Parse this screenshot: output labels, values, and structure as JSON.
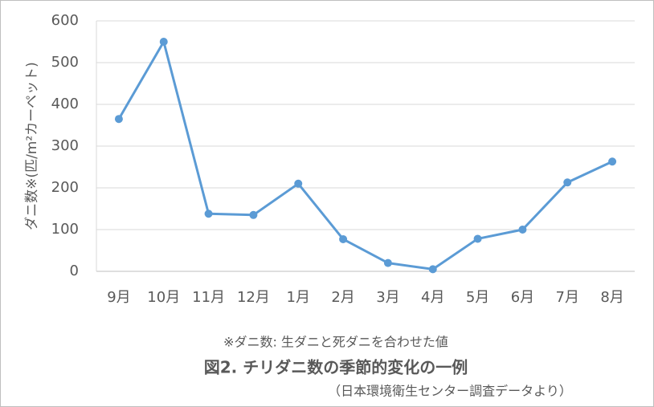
{
  "chart_data": {
    "type": "line",
    "y_label": "ダニ数※(匹/m²カーペット)",
    "footnote": "※ダニ数: 生ダニと死ダニを合わせた値",
    "title": "図2. チリダニ数の季節的変化の一例",
    "source": "（日本環境衛生センター調査データより）",
    "categories": [
      "9月",
      "10月",
      "11月",
      "12月",
      "1月",
      "2月",
      "3月",
      "4月",
      "5月",
      "6月",
      "7月",
      "8月"
    ],
    "values": [
      365,
      550,
      138,
      135,
      210,
      77,
      20,
      5,
      78,
      100,
      213,
      263
    ],
    "color": "#5b9bd5",
    "ylim": [
      0,
      600
    ],
    "yticks": [
      0,
      100,
      200,
      300,
      400,
      500,
      600
    ],
    "grid": true
  }
}
